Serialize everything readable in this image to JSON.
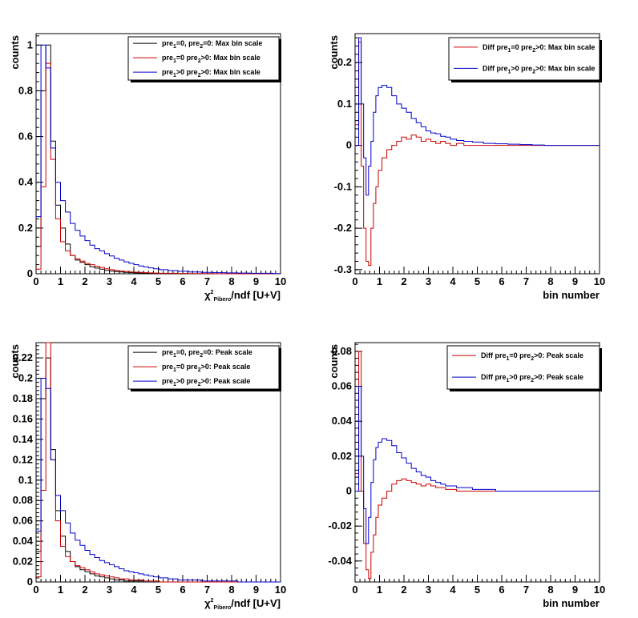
{
  "colors": {
    "black": "#000000",
    "red": "#cc0000",
    "blue": "#0000cc"
  },
  "panels": [
    {
      "id": "top-left",
      "xlabel": {
        "parts": [
          [
            "χ",
            ""
          ],
          [
            "2",
            "sup"
          ],
          [
            "Pibero",
            "sub"
          ],
          [
            "/ndf [U+V]",
            ""
          ]
        ]
      },
      "ylabel": "counts",
      "xlim": [
        0,
        10
      ],
      "ylim": [
        0,
        1.05
      ],
      "yticks": [
        "0",
        "0.2",
        "0.4",
        "0.6",
        "0.8",
        "1"
      ],
      "ytick_values": [
        0,
        0.2,
        0.4,
        0.6,
        0.8,
        1
      ],
      "legend": [
        {
          "color": "black",
          "parts": [
            [
              "pre",
              ""
            ],
            [
              "1",
              "sub"
            ],
            [
              "=0, pre",
              ""
            ],
            [
              "2",
              "sub"
            ],
            [
              "=0: Max bin scale",
              ""
            ]
          ]
        },
        {
          "color": "red",
          "parts": [
            [
              "pre",
              ""
            ],
            [
              "1",
              "sub"
            ],
            [
              "=0 pre",
              ""
            ],
            [
              "2",
              "sub"
            ],
            [
              ">0: Max bin scale",
              ""
            ]
          ]
        },
        {
          "color": "blue",
          "parts": [
            [
              "pre",
              ""
            ],
            [
              "1",
              "sub"
            ],
            [
              ">0 pre",
              ""
            ],
            [
              "2",
              "sub"
            ],
            [
              ">0: Max bin scale",
              ""
            ]
          ]
        }
      ]
    },
    {
      "id": "top-right",
      "xlabel": {
        "parts": [
          [
            "bin number",
            ""
          ]
        ]
      },
      "ylabel": "counts",
      "xlim": [
        0,
        10
      ],
      "ylim": [
        -0.31,
        0.27
      ],
      "yticks": [
        "-0.3",
        "-0.2",
        "-0.1",
        "0",
        "0.1",
        "0.2"
      ],
      "ytick_values": [
        -0.3,
        -0.2,
        -0.1,
        0,
        0.1,
        0.2
      ],
      "legend": [
        {
          "color": "red",
          "parts": [
            [
              "Diff pre",
              ""
            ],
            [
              "1",
              "sub"
            ],
            [
              "=0 pre",
              ""
            ],
            [
              "2",
              "sub"
            ],
            [
              ">0: Max bin scale",
              ""
            ]
          ]
        },
        {
          "color": "blue",
          "parts": [
            [
              "Diff pre",
              ""
            ],
            [
              "1",
              "sub"
            ],
            [
              ">0 pre",
              ""
            ],
            [
              "2",
              "sub"
            ],
            [
              ">0: Max bin scale",
              ""
            ]
          ]
        }
      ]
    },
    {
      "id": "bottom-left",
      "xlabel": {
        "parts": [
          [
            "χ",
            ""
          ],
          [
            "2",
            "sup"
          ],
          [
            "Pibero",
            "sub"
          ],
          [
            "/ndf [U+V]",
            ""
          ]
        ]
      },
      "ylabel": "counts",
      "xlim": [
        0,
        10
      ],
      "ylim": [
        0,
        0.235
      ],
      "yticks": [
        "0",
        "0.02",
        "0.04",
        "0.06",
        "0.08",
        "0.1",
        "0.12",
        "0.14",
        "0.16",
        "0.18",
        "0.2",
        "0.22"
      ],
      "ytick_values": [
        0,
        0.02,
        0.04,
        0.06,
        0.08,
        0.1,
        0.12,
        0.14,
        0.16,
        0.18,
        0.2,
        0.22
      ],
      "legend": [
        {
          "color": "black",
          "parts": [
            [
              "pre",
              ""
            ],
            [
              "1",
              "sub"
            ],
            [
              "=0, pre",
              ""
            ],
            [
              "2",
              "sub"
            ],
            [
              "=0: Peak scale",
              ""
            ]
          ]
        },
        {
          "color": "red",
          "parts": [
            [
              "pre",
              ""
            ],
            [
              "1",
              "sub"
            ],
            [
              "=0 pre",
              ""
            ],
            [
              "2",
              "sub"
            ],
            [
              ">0: Peak scale",
              ""
            ]
          ]
        },
        {
          "color": "blue",
          "parts": [
            [
              "pre",
              ""
            ],
            [
              "1",
              "sub"
            ],
            [
              ">0 pre",
              ""
            ],
            [
              "2",
              "sub"
            ],
            [
              ">0: Peak scale",
              ""
            ]
          ]
        }
      ]
    },
    {
      "id": "bottom-right",
      "xlabel": {
        "parts": [
          [
            "bin number",
            ""
          ]
        ]
      },
      "ylabel": "counts",
      "xlim": [
        0,
        10
      ],
      "ylim": [
        -0.052,
        0.085
      ],
      "yticks": [
        "-0.04",
        "-0.02",
        "0",
        "0.02",
        "0.04",
        "0.06",
        "0.08"
      ],
      "ytick_values": [
        -0.04,
        -0.02,
        0,
        0.02,
        0.04,
        0.06,
        0.08
      ],
      "legend": [
        {
          "color": "red",
          "parts": [
            [
              "Diff pre",
              ""
            ],
            [
              "1",
              "sub"
            ],
            [
              "=0 pre",
              ""
            ],
            [
              "2",
              "sub"
            ],
            [
              ">0: Peak scale",
              ""
            ]
          ]
        },
        {
          "color": "blue",
          "parts": [
            [
              "Diff pre",
              ""
            ],
            [
              "1",
              "sub"
            ],
            [
              ">0 pre",
              ""
            ],
            [
              "2",
              "sub"
            ],
            [
              ">0: Peak scale",
              ""
            ]
          ]
        }
      ]
    }
  ],
  "xticks": [
    "0",
    "1",
    "2",
    "3",
    "4",
    "5",
    "6",
    "7",
    "8",
    "9",
    "10"
  ],
  "chart_data": [
    {
      "type": "line",
      "x": [
        0.1,
        0.3,
        0.5,
        0.7,
        0.9,
        1.1,
        1.3,
        1.5,
        1.7,
        1.9,
        2.1,
        2.3,
        2.5,
        2.7,
        2.9,
        3.1,
        3.3,
        3.5,
        3.7,
        3.9,
        4.1,
        4.3,
        4.5,
        4.7,
        4.9,
        5.2,
        5.6,
        6.0,
        6.5,
        7.0,
        7.5,
        8.0,
        8.5,
        9.0,
        9.5,
        9.9
      ],
      "xlabel": "χ2 Pibero/ndf [U+V]",
      "ylabel": "counts",
      "xlim": [
        0,
        10
      ],
      "ylim": [
        0,
        1.05
      ],
      "series": [
        {
          "name": "pre1=0, pre2=0: Max bin scale",
          "color": "black",
          "values": [
            0.12,
            0.8,
            1.0,
            0.58,
            0.3,
            0.2,
            0.13,
            0.08,
            0.06,
            0.05,
            0.04,
            0.03,
            0.025,
            0.02,
            0.015,
            0.012,
            0.01,
            0.008,
            0.006,
            0.005,
            0.004,
            0.003,
            0.003,
            0.002,
            0.002,
            0.001,
            0.001,
            0.001,
            0.0,
            0.0,
            0.0,
            0.0,
            0.0,
            0.0,
            0.0,
            0.0
          ]
        },
        {
          "name": "pre1=0 pre2>0: Max bin scale",
          "color": "red",
          "values": [
            0.02,
            0.38,
            0.92,
            0.5,
            0.24,
            0.14,
            0.1,
            0.08,
            0.065,
            0.055,
            0.045,
            0.04,
            0.033,
            0.028,
            0.022,
            0.018,
            0.014,
            0.012,
            0.01,
            0.008,
            0.007,
            0.006,
            0.005,
            0.004,
            0.003,
            0.002,
            0.002,
            0.001,
            0.001,
            0.001,
            0.0,
            0.0,
            0.0,
            0.0,
            0.0,
            0.0
          ]
        },
        {
          "name": "pre1>0 pre2>0: Max bin scale",
          "color": "blue",
          "values": [
            0.25,
            1.0,
            0.9,
            0.55,
            0.4,
            0.32,
            0.27,
            0.22,
            0.19,
            0.165,
            0.145,
            0.125,
            0.11,
            0.1,
            0.088,
            0.078,
            0.068,
            0.06,
            0.052,
            0.046,
            0.04,
            0.034,
            0.03,
            0.026,
            0.022,
            0.018,
            0.014,
            0.011,
            0.008,
            0.006,
            0.005,
            0.004,
            0.003,
            0.002,
            0.002,
            0.001
          ]
        }
      ]
    },
    {
      "type": "line",
      "x": [
        0.1,
        0.2,
        0.3,
        0.4,
        0.5,
        0.6,
        0.7,
        0.8,
        0.9,
        1.0,
        1.2,
        1.4,
        1.6,
        1.8,
        2.0,
        2.2,
        2.4,
        2.6,
        2.8,
        3.0,
        3.2,
        3.4,
        3.6,
        3.8,
        4.0,
        4.3,
        4.6,
        5.0,
        5.5,
        6.0,
        6.5,
        7.0,
        7.5,
        8.0,
        8.5,
        9.0,
        9.5,
        9.9
      ],
      "xlabel": "bin number",
      "ylabel": "counts",
      "xlim": [
        0,
        10
      ],
      "ylim": [
        -0.31,
        0.27
      ],
      "series": [
        {
          "name": "Diff pre1=0 pre2>0: Max bin scale",
          "color": "red",
          "values": [
            0.05,
            0.25,
            -0.05,
            -0.2,
            -0.28,
            -0.29,
            -0.2,
            -0.14,
            -0.1,
            -0.06,
            -0.03,
            -0.01,
            0.0,
            0.01,
            0.02,
            0.015,
            0.025,
            0.02,
            0.01,
            0.015,
            0.01,
            0.005,
            0.01,
            0.005,
            0.0,
            0.005,
            0.0,
            0.0,
            0.0,
            0.0,
            0.0,
            0.0,
            0.0,
            0.0,
            0.0,
            0.0,
            0.0,
            0.0
          ]
        },
        {
          "name": "Diff pre1>0 pre2>0: Max bin scale",
          "color": "blue",
          "values": [
            0.0,
            0.26,
            0.1,
            -0.03,
            -0.12,
            -0.05,
            0.01,
            0.08,
            0.12,
            0.14,
            0.145,
            0.14,
            0.12,
            0.1,
            0.09,
            0.08,
            0.065,
            0.055,
            0.045,
            0.035,
            0.03,
            0.028,
            0.022,
            0.02,
            0.015,
            0.012,
            0.01,
            0.008,
            0.005,
            0.004,
            0.003,
            0.002,
            0.001,
            0.0,
            0.0,
            0.0,
            0.0,
            0.0
          ]
        }
      ]
    },
    {
      "type": "line",
      "x": [
        0.1,
        0.3,
        0.5,
        0.7,
        0.9,
        1.1,
        1.3,
        1.5,
        1.7,
        1.9,
        2.1,
        2.3,
        2.5,
        2.7,
        2.9,
        3.1,
        3.3,
        3.5,
        3.7,
        3.9,
        4.1,
        4.3,
        4.5,
        4.7,
        4.9,
        5.2,
        5.6,
        6.0,
        6.5,
        7.0,
        7.5,
        8.0,
        8.5,
        9.0,
        9.5,
        9.9
      ],
      "xlabel": "χ2 Pibero/ndf [U+V]",
      "ylabel": "counts",
      "xlim": [
        0,
        10
      ],
      "ylim": [
        0,
        0.235
      ],
      "series": [
        {
          "name": "pre1=0, pre2=0: Peak scale",
          "color": "black",
          "values": [
            0.03,
            0.18,
            0.22,
            0.13,
            0.07,
            0.045,
            0.03,
            0.02,
            0.015,
            0.012,
            0.01,
            0.008,
            0.006,
            0.005,
            0.004,
            0.003,
            0.002,
            0.002,
            0.001,
            0.001,
            0.001,
            0.001,
            0.0,
            0.0,
            0.0,
            0.0,
            0.0,
            0.0,
            0.0,
            0.0,
            0.0,
            0.0,
            0.0,
            0.0,
            0.0,
            0.0
          ]
        },
        {
          "name": "pre1=0 pre2>0: Peak scale",
          "color": "red",
          "values": [
            0.005,
            0.09,
            0.235,
            0.12,
            0.06,
            0.035,
            0.025,
            0.02,
            0.016,
            0.014,
            0.012,
            0.01,
            0.008,
            0.007,
            0.006,
            0.005,
            0.004,
            0.003,
            0.003,
            0.002,
            0.002,
            0.002,
            0.001,
            0.001,
            0.001,
            0.0,
            0.0,
            0.0,
            0.0,
            0.0,
            0.0,
            0.0,
            0.0,
            0.0,
            0.0,
            0.0
          ]
        },
        {
          "name": "pre1>0 pre2>0: Peak scale",
          "color": "blue",
          "values": [
            0.05,
            0.2,
            0.19,
            0.12,
            0.085,
            0.07,
            0.058,
            0.048,
            0.041,
            0.036,
            0.031,
            0.027,
            0.024,
            0.021,
            0.019,
            0.017,
            0.015,
            0.013,
            0.011,
            0.01,
            0.009,
            0.008,
            0.007,
            0.006,
            0.005,
            0.004,
            0.003,
            0.002,
            0.002,
            0.001,
            0.001,
            0.001,
            0.0,
            0.0,
            0.0,
            0.0
          ]
        }
      ]
    },
    {
      "type": "line",
      "x": [
        0.1,
        0.2,
        0.3,
        0.4,
        0.5,
        0.6,
        0.7,
        0.8,
        0.9,
        1.0,
        1.2,
        1.4,
        1.6,
        1.8,
        2.0,
        2.2,
        2.4,
        2.6,
        2.8,
        3.0,
        3.2,
        3.4,
        3.6,
        3.8,
        4.0,
        4.3,
        4.6,
        5.0,
        5.5,
        6.0,
        6.5,
        7.0,
        7.5,
        8.0,
        8.5,
        9.0,
        9.5,
        9.9
      ],
      "xlabel": "bin number",
      "ylabel": "counts",
      "xlim": [
        0,
        10
      ],
      "ylim": [
        -0.052,
        0.085
      ],
      "series": [
        {
          "name": "Diff pre1=0 pre2>0: Peak scale",
          "color": "red",
          "values": [
            0.01,
            0.08,
            0.0,
            -0.03,
            -0.045,
            -0.05,
            -0.035,
            -0.025,
            -0.015,
            -0.008,
            -0.004,
            0.0,
            0.004,
            0.006,
            0.007,
            0.006,
            0.005,
            0.004,
            0.003,
            0.004,
            0.003,
            0.002,
            0.002,
            0.001,
            0.001,
            0.0,
            0.0,
            0.0,
            0.0,
            0.0,
            0.0,
            0.0,
            0.0,
            0.0,
            0.0,
            0.0,
            0.0,
            0.0
          ]
        },
        {
          "name": "Diff pre1>0 pre2>0: Peak scale",
          "color": "blue",
          "values": [
            0.0,
            0.06,
            0.02,
            -0.01,
            -0.03,
            -0.015,
            0.005,
            0.018,
            0.025,
            0.028,
            0.03,
            0.029,
            0.026,
            0.022,
            0.019,
            0.016,
            0.013,
            0.011,
            0.009,
            0.008,
            0.006,
            0.005,
            0.004,
            0.003,
            0.003,
            0.002,
            0.002,
            0.001,
            0.001,
            0.0,
            0.0,
            0.0,
            0.0,
            0.0,
            0.0,
            0.0,
            0.0,
            0.0
          ]
        }
      ]
    }
  ]
}
